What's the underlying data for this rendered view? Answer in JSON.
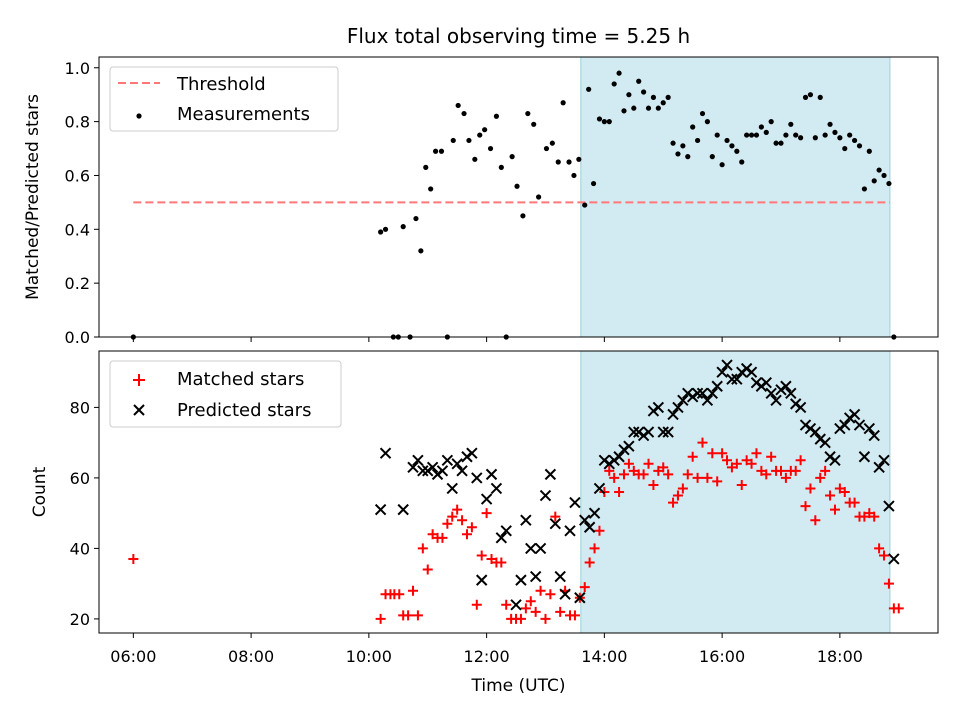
{
  "chart_data": {
    "title": "Flux total observing time = 5.25 h",
    "xlabel": "Time (UTC)",
    "x_ticks": [
      "06:00",
      "08:00",
      "10:00",
      "12:00",
      "14:00",
      "16:00",
      "18:00"
    ],
    "xlim": [
      "05:25",
      "19:40"
    ],
    "highlight_span": {
      "start": "13:36",
      "end": "18:51",
      "color": "#add8e6"
    },
    "subplots": [
      {
        "type": "scatter",
        "ylabel": "Matched/Predicted stars",
        "ylim": [
          0,
          1.04
        ],
        "y_ticks": [
          "0.0",
          "0.2",
          "0.4",
          "0.6",
          "0.8",
          "1.0"
        ],
        "legend_position": "top-left",
        "threshold": {
          "name": "Threshold",
          "value": 0.5,
          "x_range": [
            "06:00",
            "18:51"
          ],
          "color": "#ff7777"
        },
        "series": [
          {
            "name": "Measurements",
            "color": "#000000",
            "x": [
              "06:00",
              "10:12",
              "10:17",
              "10:25",
              "10:30",
              "10:35",
              "10:42",
              "10:48",
              "10:53",
              "10:58",
              "11:03",
              "11:08",
              "11:14",
              "11:20",
              "11:26",
              "11:31",
              "11:37",
              "11:42",
              "11:48",
              "11:53",
              "11:58",
              "12:04",
              "12:10",
              "12:15",
              "12:20",
              "12:26",
              "12:31",
              "12:37",
              "12:42",
              "12:48",
              "12:53",
              "13:01",
              "13:07",
              "13:13",
              "13:18",
              "13:24",
              "13:29",
              "13:34",
              "13:40",
              "13:44",
              "13:49",
              "13:55",
              "14:00",
              "14:05",
              "14:10",
              "14:15",
              "14:20",
              "14:25",
              "14:30",
              "14:35",
              "14:40",
              "14:45",
              "14:50",
              "14:55",
              "15:00",
              "15:05",
              "15:10",
              "15:15",
              "15:20",
              "15:25",
              "15:30",
              "15:35",
              "15:40",
              "15:45",
              "15:50",
              "15:55",
              "16:00",
              "16:05",
              "16:10",
              "16:15",
              "16:20",
              "16:25",
              "16:30",
              "16:35",
              "16:40",
              "16:45",
              "16:50",
              "16:55",
              "17:00",
              "17:05",
              "17:10",
              "17:15",
              "17:20",
              "17:25",
              "17:30",
              "17:35",
              "17:40",
              "17:45",
              "17:50",
              "17:55",
              "18:00",
              "18:05",
              "18:10",
              "18:15",
              "18:20",
              "18:25",
              "18:30",
              "18:35",
              "18:40",
              "18:45",
              "18:50",
              "18:55"
            ],
            "y": [
              0.0,
              0.39,
              0.4,
              0.0,
              0.0,
              0.41,
              0.0,
              0.44,
              0.32,
              0.63,
              0.55,
              0.69,
              0.69,
              0.0,
              0.73,
              0.86,
              0.83,
              0.73,
              0.66,
              0.75,
              0.77,
              0.7,
              0.82,
              0.63,
              0.0,
              0.67,
              0.56,
              0.45,
              0.83,
              0.79,
              0.52,
              0.7,
              0.72,
              0.65,
              0.87,
              0.65,
              0.6,
              0.66,
              0.49,
              0.92,
              0.57,
              0.81,
              0.8,
              0.8,
              0.94,
              0.98,
              0.84,
              0.9,
              0.85,
              0.95,
              0.91,
              0.85,
              0.89,
              0.85,
              0.87,
              0.89,
              0.72,
              0.68,
              0.71,
              0.67,
              0.78,
              0.73,
              0.83,
              0.8,
              0.67,
              0.75,
              0.64,
              0.73,
              0.71,
              0.69,
              0.65,
              0.75,
              0.75,
              0.75,
              0.78,
              0.76,
              0.8,
              0.72,
              0.72,
              0.75,
              0.79,
              0.75,
              0.74,
              0.89,
              0.9,
              0.74,
              0.89,
              0.75,
              0.79,
              0.76,
              0.74,
              0.7,
              0.75,
              0.73,
              0.71,
              0.55,
              0.69,
              0.58,
              0.62,
              0.6,
              0.57,
              0.0
            ]
          }
        ]
      },
      {
        "type": "scatter",
        "ylabel": "Count",
        "ylim": [
          16,
          96
        ],
        "y_ticks": [
          "20",
          "40",
          "60",
          "80"
        ],
        "legend_position": "top-left",
        "series": [
          {
            "name": "Matched stars",
            "marker": "+",
            "color": "#ff0000",
            "x": [
              "06:00",
              "10:12",
              "10:17",
              "10:22",
              "10:26",
              "10:31",
              "10:35",
              "10:40",
              "10:45",
              "10:50",
              "10:55",
              "11:00",
              "11:05",
              "11:10",
              "11:15",
              "11:20",
              "11:25",
              "11:30",
              "11:35",
              "11:40",
              "11:45",
              "11:50",
              "11:55",
              "12:00",
              "12:05",
              "12:10",
              "12:15",
              "12:20",
              "12:25",
              "12:30",
              "12:35",
              "12:40",
              "12:45",
              "12:50",
              "12:55",
              "13:00",
              "13:05",
              "13:10",
              "13:15",
              "13:20",
              "13:25",
              "13:30",
              "13:35",
              "13:40",
              "13:45",
              "13:50",
              "13:55",
              "14:00",
              "14:05",
              "14:10",
              "14:15",
              "14:20",
              "14:25",
              "14:30",
              "14:35",
              "14:40",
              "14:45",
              "14:50",
              "14:55",
              "15:00",
              "15:05",
              "15:10",
              "15:15",
              "15:20",
              "15:25",
              "15:30",
              "15:35",
              "15:40",
              "15:45",
              "15:50",
              "15:55",
              "16:00",
              "16:05",
              "16:10",
              "16:15",
              "16:20",
              "16:25",
              "16:30",
              "16:35",
              "16:40",
              "16:45",
              "16:50",
              "16:55",
              "17:00",
              "17:05",
              "17:10",
              "17:15",
              "17:20",
              "17:25",
              "17:30",
              "17:35",
              "17:40",
              "17:45",
              "17:50",
              "17:55",
              "18:00",
              "18:05",
              "18:10",
              "18:15",
              "18:20",
              "18:25",
              "18:30",
              "18:35",
              "18:40",
              "18:45",
              "18:50",
              "18:55",
              "19:00"
            ],
            "y": [
              37,
              20,
              27,
              27,
              27,
              27,
              21,
              21,
              28,
              21,
              40,
              34,
              44,
              43,
              43,
              47,
              49,
              51,
              48,
              44,
              46,
              24,
              38,
              50,
              37,
              36,
              36,
              24,
              20,
              20,
              20,
              23,
              25,
              22,
              28,
              20,
              27,
              49,
              22,
              28,
              21,
              21,
              26,
              29,
              36,
              40,
              45,
              56,
              62,
              60,
              56,
              61,
              64,
              62,
              61,
              61,
              64,
              58,
              62,
              63,
              61,
              53,
              55,
              57,
              61,
              66,
              60,
              70,
              60,
              67,
              59,
              67,
              65,
              63,
              64,
              58,
              65,
              64,
              67,
              62,
              61,
              66,
              62,
              62,
              60,
              62,
              62,
              65,
              52,
              57,
              48,
              60,
              62,
              55,
              51,
              57,
              56,
              53,
              53,
              49,
              49,
              50,
              49,
              40,
              38,
              30,
              23,
              23
            ]
          },
          {
            "name": "Predicted stars",
            "marker": "x",
            "color": "#000000",
            "x": [
              "10:12",
              "10:17",
              "10:35",
              "10:45",
              "10:50",
              "10:55",
              "11:00",
              "11:05",
              "11:10",
              "11:15",
              "11:20",
              "11:25",
              "11:30",
              "11:35",
              "11:40",
              "11:45",
              "11:50",
              "11:55",
              "12:00",
              "12:05",
              "12:10",
              "12:15",
              "12:20",
              "12:30",
              "12:35",
              "12:40",
              "12:45",
              "12:50",
              "12:55",
              "13:00",
              "13:05",
              "13:10",
              "13:15",
              "13:20",
              "13:25",
              "13:30",
              "13:35",
              "13:40",
              "13:45",
              "13:50",
              "13:55",
              "14:00",
              "14:05",
              "14:10",
              "14:15",
              "14:20",
              "14:25",
              "14:30",
              "14:35",
              "14:40",
              "14:45",
              "14:50",
              "14:55",
              "15:00",
              "15:05",
              "15:10",
              "15:15",
              "15:20",
              "15:25",
              "15:30",
              "15:35",
              "15:40",
              "15:45",
              "15:50",
              "15:55",
              "16:00",
              "16:05",
              "16:10",
              "16:15",
              "16:20",
              "16:25",
              "16:30",
              "16:35",
              "16:40",
              "16:45",
              "16:50",
              "16:55",
              "17:00",
              "17:05",
              "17:10",
              "17:15",
              "17:20",
              "17:25",
              "17:30",
              "17:35",
              "17:40",
              "17:45",
              "17:50",
              "17:55",
              "18:00",
              "18:05",
              "18:10",
              "18:15",
              "18:20",
              "18:25",
              "18:30",
              "18:35",
              "18:40",
              "18:45",
              "18:50",
              "18:55"
            ],
            "y": [
              51,
              67,
              51,
              63,
              65,
              62,
              62,
              63,
              61,
              62,
              65,
              57,
              64,
              62,
              66,
              67,
              60,
              31,
              54,
              61,
              57,
              43,
              45,
              24,
              31,
              48,
              40,
              32,
              40,
              55,
              61,
              47,
              32,
              27,
              45,
              53,
              26,
              48,
              46,
              50,
              57,
              65,
              64,
              65,
              66,
              68,
              69,
              73,
              73,
              72,
              73,
              79,
              80,
              73,
              73,
              78,
              80,
              82,
              84,
              83,
              84,
              84,
              82,
              84,
              86,
              90,
              92,
              88,
              88,
              90,
              91,
              90,
              87,
              86,
              87,
              84,
              82,
              85,
              86,
              84,
              81,
              80,
              75,
              74,
              73,
              71,
              70,
              66,
              65,
              74,
              75,
              77,
              78,
              75,
              66,
              74,
              72,
              63,
              65,
              52,
              37
            ]
          }
        ]
      }
    ]
  }
}
